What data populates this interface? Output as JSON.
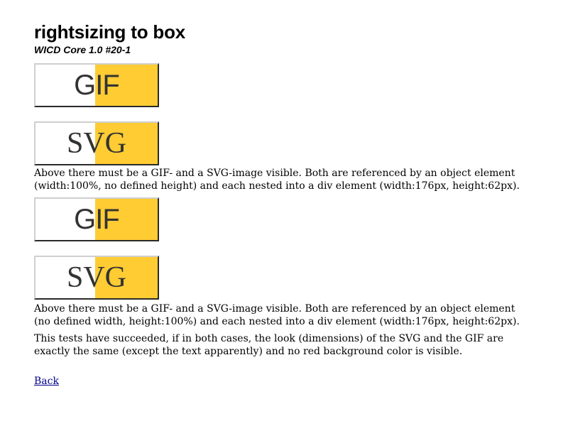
{
  "page": {
    "title": "rightsizing to box",
    "subtitle": "WICD Core 1.0 #20-1"
  },
  "colors": {
    "yellow_fill": "#ffcc33",
    "white_fill": "#ffffff",
    "label_text": "#333333"
  },
  "images": [
    {
      "label": "GIF",
      "format": "gif"
    },
    {
      "label": "SVG",
      "format": "svg"
    },
    {
      "label": "GIF",
      "format": "gif"
    },
    {
      "label": "SVG",
      "format": "svg"
    }
  ],
  "paragraphs": {
    "first": "Above there must be a GIF- and a SVG-image visible. Both are referenced by an object element (width:100%, no defined height) and each nested into a div element (width:176px, height:62px).",
    "second": "Above there must be a GIF- and a SVG-image visible. Both are referenced by an object element (no defined width, height:100%) and each nested into a div element (width:176px, height:62px).",
    "third": "This tests have succeeded, if in both cases, the look (dimensions) of the SVG and the GIF are exactly the same (except the text apparently) and no red background color is visible."
  },
  "links": {
    "back": "Back"
  }
}
